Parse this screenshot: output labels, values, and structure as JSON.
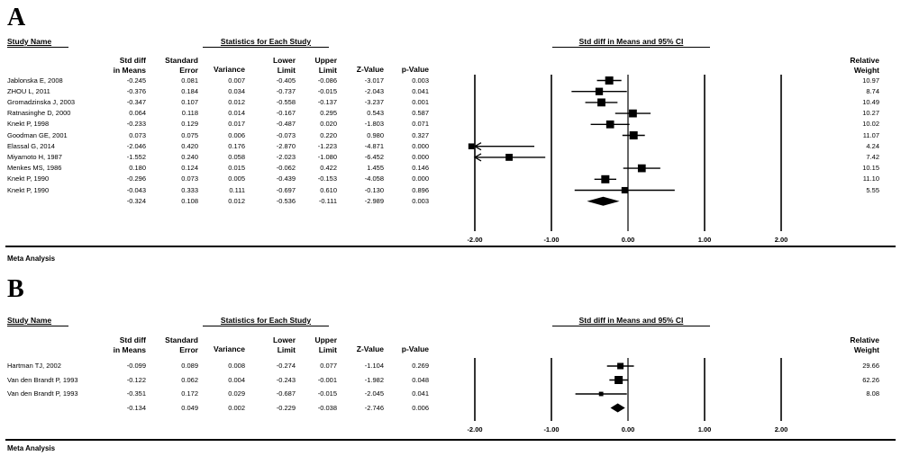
{
  "panels": [
    {
      "letter": "A",
      "headers": {
        "study": "Study Name",
        "stats": "Statistics for Each Study",
        "plot": "Std diff in Means and 95% CI",
        "std_diff": [
          "Std diff",
          "in Means"
        ],
        "std_err": [
          "Standard",
          "Error"
        ],
        "variance": "Variance",
        "lower": [
          "Lower",
          "Limit"
        ],
        "upper": [
          "Upper",
          "Limit"
        ],
        "zvalue": "Z-Value",
        "pvalue": "p-Value",
        "weight": [
          "Relative",
          "Weight"
        ]
      },
      "rows": [
        {
          "study": "Jablonska E, 2008",
          "std_diff": "-0.245",
          "se": "0.081",
          "variance": "0.007",
          "lower": "-0.405",
          "upper": "-0.086",
          "z": "-3.017",
          "p": "0.003",
          "weight": "10.97"
        },
        {
          "study": "ZHOU L, 2011",
          "std_diff": "-0.376",
          "se": "0.184",
          "variance": "0.034",
          "lower": "-0.737",
          "upper": "-0.015",
          "z": "-2.043",
          "p": "0.041",
          "weight": "8.74"
        },
        {
          "study": "Gromadzinska J, 2003",
          "std_diff": "-0.347",
          "se": "0.107",
          "variance": "0.012",
          "lower": "-0.558",
          "upper": "-0.137",
          "z": "-3.237",
          "p": "0.001",
          "weight": "10.49"
        },
        {
          "study": "Ratnasinghe D, 2000",
          "std_diff": "0.064",
          "se": "0.118",
          "variance": "0.014",
          "lower": "-0.167",
          "upper": "0.295",
          "z": "0.543",
          "p": "0.587",
          "weight": "10.27"
        },
        {
          "study": "Knekt P, 1998",
          "std_diff": "-0.233",
          "se": "0.129",
          "variance": "0.017",
          "lower": "-0.487",
          "upper": "0.020",
          "z": "-1.803",
          "p": "0.071",
          "weight": "10.02"
        },
        {
          "study": "Goodman GE, 2001",
          "std_diff": "0.073",
          "se": "0.075",
          "variance": "0.006",
          "lower": "-0.073",
          "upper": "0.220",
          "z": "0.980",
          "p": "0.327",
          "weight": "11.07"
        },
        {
          "study": "Elassal G, 2014",
          "std_diff": "-2.046",
          "se": "0.420",
          "variance": "0.176",
          "lower": "-2.870",
          "upper": "-1.223",
          "z": "-4.871",
          "p": "0.000",
          "weight": "4.24"
        },
        {
          "study": "Miyamoto H, 1987",
          "std_diff": "-1.552",
          "se": "0.240",
          "variance": "0.058",
          "lower": "-2.023",
          "upper": "-1.080",
          "z": "-6.452",
          "p": "0.000",
          "weight": "7.42"
        },
        {
          "study": "Menkes MS, 1986",
          "std_diff": "0.180",
          "se": "0.124",
          "variance": "0.015",
          "lower": "-0.062",
          "upper": "0.422",
          "z": "1.455",
          "p": "0.146",
          "weight": "10.15"
        },
        {
          "study": "Knekt P, 1990",
          "std_diff": "-0.296",
          "se": "0.073",
          "variance": "0.005",
          "lower": "-0.439",
          "upper": "-0.153",
          "z": "-4.058",
          "p": "0.000",
          "weight": "11.10"
        },
        {
          "study": "Knekt P, 1990",
          "std_diff": "-0.043",
          "se": "0.333",
          "variance": "0.111",
          "lower": "-0.697",
          "upper": "0.610",
          "z": "-0.130",
          "p": "0.896",
          "weight": "5.55"
        }
      ],
      "summary": {
        "study": "",
        "std_diff": "-0.324",
        "se": "0.108",
        "variance": "0.012",
        "lower": "-0.536",
        "upper": "-0.111",
        "z": "-2.989",
        "p": "0.003",
        "weight": ""
      },
      "ticks": [
        "-2.00",
        "-1.00",
        "0.00",
        "1.00",
        "2.00"
      ],
      "footer": "Meta Analysis"
    },
    {
      "letter": "B",
      "headers": {
        "study": "Study Name",
        "stats": "Statistics for Each Study",
        "plot": "Std diff in Means and 95% CI",
        "std_diff": [
          "Std diff",
          "in Means"
        ],
        "std_err": [
          "Standard",
          "Error"
        ],
        "variance": "Variance",
        "lower": [
          "Lower",
          "Limit"
        ],
        "upper": [
          "Upper",
          "Limit"
        ],
        "zvalue": "Z-Value",
        "pvalue": "p-Value",
        "weight": [
          "Relative",
          "Weight"
        ]
      },
      "rows": [
        {
          "study": "Hartman TJ, 2002",
          "std_diff": "-0.099",
          "se": "0.089",
          "variance": "0.008",
          "lower": "-0.274",
          "upper": "0.077",
          "z": "-1.104",
          "p": "0.269",
          "weight": "29.66"
        },
        {
          "study": "Van den Brandt P, 1993",
          "std_diff": "-0.122",
          "se": "0.062",
          "variance": "0.004",
          "lower": "-0.243",
          "upper": "-0.001",
          "z": "-1.982",
          "p": "0.048",
          "weight": "62.26"
        },
        {
          "study": "Van den Brandt P, 1993",
          "std_diff": "-0.351",
          "se": "0.172",
          "variance": "0.029",
          "lower": "-0.687",
          "upper": "-0.015",
          "z": "-2.045",
          "p": "0.041",
          "weight": "8.08"
        }
      ],
      "summary": {
        "study": "",
        "std_diff": "-0.134",
        "se": "0.049",
        "variance": "0.002",
        "lower": "-0.229",
        "upper": "-0.038",
        "z": "-2.746",
        "p": "0.006",
        "weight": ""
      },
      "ticks": [
        "-2.00",
        "-1.00",
        "0.00",
        "1.00",
        "2.00"
      ],
      "footer": "Meta Analysis"
    }
  ],
  "chart_data": [
    {
      "type": "scatter",
      "subtype": "forest",
      "title": "Std diff in Means and 95% CI",
      "xlim": [
        -2,
        2
      ],
      "xticks": [
        -2,
        -1,
        0,
        1,
        2
      ],
      "studies": [
        {
          "name": "Jablonska E, 2008",
          "estimate": -0.245,
          "lower": -0.405,
          "upper": -0.086,
          "weight": 10.97
        },
        {
          "name": "ZHOU L, 2011",
          "estimate": -0.376,
          "lower": -0.737,
          "upper": -0.015,
          "weight": 8.74
        },
        {
          "name": "Gromadzinska J, 2003",
          "estimate": -0.347,
          "lower": -0.558,
          "upper": -0.137,
          "weight": 10.49
        },
        {
          "name": "Ratnasinghe D, 2000",
          "estimate": 0.064,
          "lower": -0.167,
          "upper": 0.295,
          "weight": 10.27
        },
        {
          "name": "Knekt P, 1998",
          "estimate": -0.233,
          "lower": -0.487,
          "upper": 0.02,
          "weight": 10.02
        },
        {
          "name": "Goodman GE, 2001",
          "estimate": 0.073,
          "lower": -0.073,
          "upper": 0.22,
          "weight": 11.07
        },
        {
          "name": "Elassal G, 2014",
          "estimate": -2.046,
          "lower": -2.87,
          "upper": -1.223,
          "weight": 4.24
        },
        {
          "name": "Miyamoto H, 1987",
          "estimate": -1.552,
          "lower": -2.023,
          "upper": -1.08,
          "weight": 7.42
        },
        {
          "name": "Menkes MS, 1986",
          "estimate": 0.18,
          "lower": -0.062,
          "upper": 0.422,
          "weight": 10.15
        },
        {
          "name": "Knekt P, 1990",
          "estimate": -0.296,
          "lower": -0.439,
          "upper": -0.153,
          "weight": 11.1
        },
        {
          "name": "Knekt P, 1990",
          "estimate": -0.043,
          "lower": -0.697,
          "upper": 0.61,
          "weight": 5.55
        }
      ],
      "summary": {
        "estimate": -0.324,
        "lower": -0.536,
        "upper": -0.111
      }
    },
    {
      "type": "scatter",
      "subtype": "forest",
      "title": "Std diff in Means and 95% CI",
      "xlim": [
        -2,
        2
      ],
      "xticks": [
        -2,
        -1,
        0,
        1,
        2
      ],
      "studies": [
        {
          "name": "Hartman TJ, 2002",
          "estimate": -0.099,
          "lower": -0.274,
          "upper": 0.077,
          "weight": 29.66
        },
        {
          "name": "Van den Brandt P, 1993",
          "estimate": -0.122,
          "lower": -0.243,
          "upper": -0.001,
          "weight": 62.26
        },
        {
          "name": "Van den Brandt P, 1993",
          "estimate": -0.351,
          "lower": -0.687,
          "upper": -0.015,
          "weight": 8.08
        }
      ],
      "summary": {
        "estimate": -0.134,
        "lower": -0.229,
        "upper": -0.038
      }
    }
  ]
}
